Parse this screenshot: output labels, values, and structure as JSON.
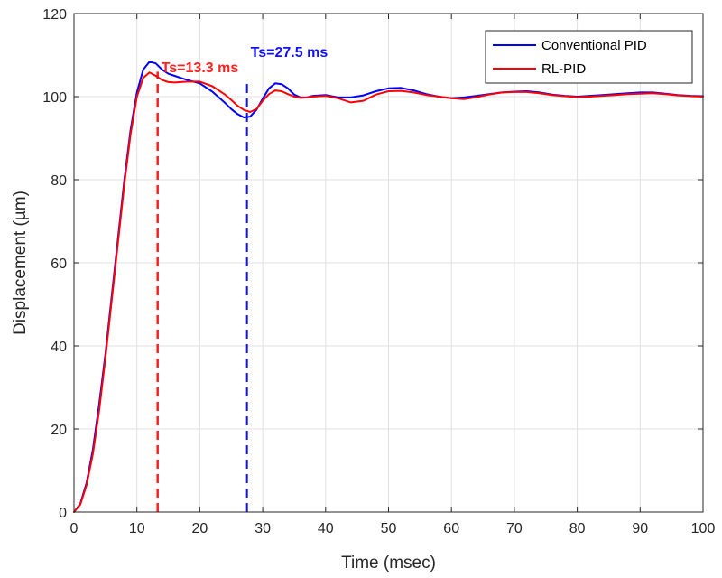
{
  "chart_data": {
    "type": "line",
    "title": "",
    "xlabel": "Time (msec)",
    "ylabel": "Displacement (µm)",
    "xlim": [
      0,
      100
    ],
    "ylim": [
      0,
      120
    ],
    "xticks": [
      0,
      10,
      20,
      30,
      40,
      50,
      60,
      70,
      80,
      90,
      100
    ],
    "yticks": [
      0,
      20,
      40,
      60,
      80,
      100,
      120
    ],
    "grid": true,
    "legend_position": "top-right",
    "series": [
      {
        "name": "Conventional PID",
        "color": "#0000ff",
        "x": [
          0,
          1,
          2,
          3,
          4,
          5,
          6,
          7,
          8,
          9,
          10,
          11,
          12,
          13,
          14,
          15,
          16,
          17,
          18,
          20,
          22,
          24,
          25,
          26,
          27,
          28,
          29,
          30,
          31,
          32,
          33,
          34,
          35,
          36,
          37,
          38,
          40,
          42,
          44,
          46,
          48,
          50,
          52,
          54,
          56,
          58,
          60,
          62,
          64,
          66,
          68,
          70,
          72,
          74,
          76,
          78,
          80,
          82,
          84,
          86,
          88,
          90,
          92,
          94,
          96,
          98,
          100
        ],
        "y": [
          0,
          2,
          7,
          15,
          26,
          38,
          52,
          66,
          80,
          92,
          101,
          106.5,
          108.4,
          108.0,
          106.5,
          105.5,
          105.0,
          104.5,
          104.0,
          103.2,
          101.2,
          98.5,
          97.0,
          95.8,
          95.0,
          95.2,
          96.8,
          99.5,
          102.0,
          103.2,
          103.0,
          102.0,
          100.5,
          99.8,
          99.8,
          100.2,
          100.4,
          99.8,
          99.8,
          100.3,
          101.3,
          102.0,
          102.1,
          101.5,
          100.6,
          100.0,
          99.6,
          99.8,
          100.2,
          100.6,
          101.0,
          101.2,
          101.3,
          101.0,
          100.5,
          100.2,
          100.0,
          100.2,
          100.4,
          100.6,
          100.8,
          101.0,
          101.0,
          100.7,
          100.4,
          100.2,
          100.1
        ]
      },
      {
        "name": "RL-PID",
        "color": "#ff0000",
        "x": [
          0,
          1,
          2,
          3,
          4,
          5,
          6,
          7,
          8,
          9,
          10,
          11,
          12,
          13,
          14,
          15,
          16,
          17,
          18,
          20,
          22,
          24,
          25,
          26,
          27,
          28,
          29,
          30,
          31,
          32,
          33,
          34,
          35,
          36,
          37,
          38,
          40,
          42,
          44,
          46,
          48,
          50,
          52,
          54,
          56,
          58,
          60,
          62,
          64,
          66,
          68,
          70,
          72,
          74,
          76,
          78,
          80,
          82,
          84,
          86,
          88,
          90,
          92,
          94,
          96,
          98,
          100
        ],
        "y": [
          0,
          1.8,
          6.5,
          14,
          24.5,
          37,
          51,
          65,
          79,
          91,
          100,
          104.5,
          105.8,
          105.0,
          104.0,
          103.5,
          103.4,
          103.5,
          103.6,
          103.6,
          102.5,
          100.5,
          99.2,
          97.8,
          96.8,
          96.3,
          97.0,
          99.0,
          100.6,
          101.5,
          101.3,
          100.6,
          100.0,
          99.7,
          99.8,
          100.0,
          100.2,
          99.6,
          98.6,
          99.0,
          100.5,
          101.3,
          101.4,
          101.0,
          100.4,
          100.0,
          99.6,
          99.4,
          99.9,
          100.5,
          101.0,
          101.1,
          101.1,
          100.8,
          100.4,
          100.1,
          99.9,
          100.0,
          100.2,
          100.4,
          100.6,
          100.7,
          100.8,
          100.6,
          100.3,
          100.1,
          100.0
        ]
      }
    ],
    "annotations": [
      {
        "text": "Ts=13.3 ms",
        "x": 13.3,
        "color": "#ff2020",
        "style": "dashed vertical line"
      },
      {
        "text": "Ts=27.5 ms",
        "x": 27.5,
        "color": "#1010ff",
        "style": "dashed vertical line"
      }
    ]
  }
}
